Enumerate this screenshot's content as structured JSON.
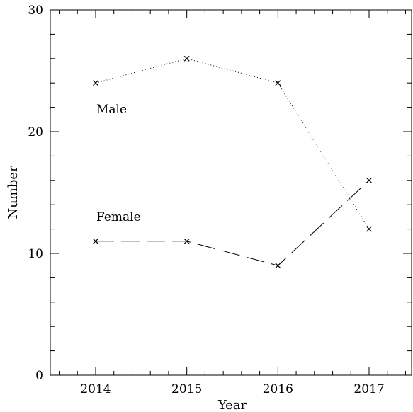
{
  "chart_data": {
    "type": "line",
    "xlabel": "Year",
    "ylabel": "Number",
    "categories": [
      "2014",
      "2015",
      "2016",
      "2017"
    ],
    "ylim": [
      0,
      30
    ],
    "yticks": [
      0,
      10,
      20,
      30
    ],
    "grid": false,
    "series": [
      {
        "name": "Male",
        "values": [
          24,
          26,
          24,
          12
        ],
        "line_style": "dotted",
        "marker": "x"
      },
      {
        "name": "Female",
        "values": [
          11,
          11,
          9,
          16
        ],
        "line_style": "long-dashed",
        "marker": "x"
      }
    ]
  }
}
